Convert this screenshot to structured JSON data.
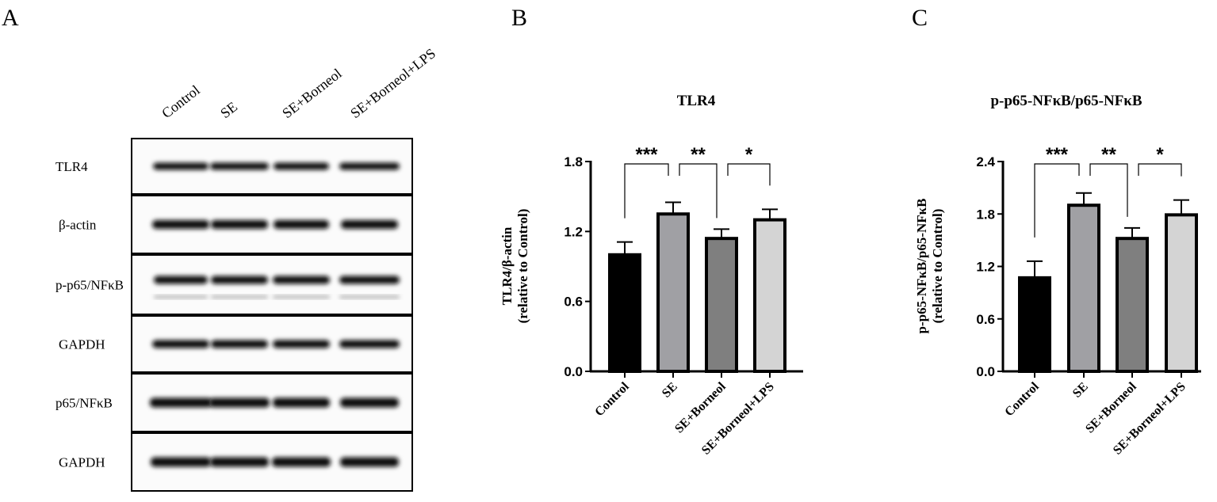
{
  "panels": {
    "a": "A",
    "b": "B",
    "c": "C"
  },
  "blot": {
    "lanes": [
      "Control",
      "SE",
      "SE+Borneol",
      "SE+Borneol+LPS"
    ],
    "rows": [
      "TLR4",
      "β-actin",
      "p-p65/NFκB",
      "GAPDH",
      "p65/NFκB",
      "GAPDH"
    ]
  },
  "chart_data": [
    {
      "type": "bar",
      "title": "TLR4",
      "ylabel": [
        "TLR4/β-actin",
        "(relative to Control)"
      ],
      "categories": [
        "Control",
        "SE",
        "SE+Borneol",
        "SE+Borneol+LPS"
      ],
      "values": [
        1.0,
        1.35,
        1.14,
        1.3
      ],
      "errors": [
        0.11,
        0.1,
        0.08,
        0.09
      ],
      "ylim": [
        0,
        1.8
      ],
      "yticks": [
        "0.0",
        "0.6",
        "1.2",
        "1.8"
      ],
      "colors": [
        "#000000",
        "#a0a0a4",
        "#7f7f7f",
        "#d4d4d4"
      ],
      "significance": [
        {
          "from": 0,
          "to": 1,
          "label": "***"
        },
        {
          "from": 1,
          "to": 2,
          "label": "**"
        },
        {
          "from": 2,
          "to": 3,
          "label": "*"
        }
      ]
    },
    {
      "type": "bar",
      "title": "p-p65-NFκB/p65-NFκB",
      "ylabel": [
        "p-p65-NFκB/p65-NFκB",
        "(relative to Control)"
      ],
      "categories": [
        "Control",
        "SE",
        "SE+Borneol",
        "SE+Borneol+LPS"
      ],
      "values": [
        1.07,
        1.9,
        1.52,
        1.79
      ],
      "errors": [
        0.19,
        0.14,
        0.12,
        0.17
      ],
      "ylim": [
        0,
        2.4
      ],
      "yticks": [
        "0.0",
        "0.6",
        "1.2",
        "1.8",
        "2.4"
      ],
      "colors": [
        "#000000",
        "#a0a0a4",
        "#7f7f7f",
        "#d4d4d4"
      ],
      "significance": [
        {
          "from": 0,
          "to": 1,
          "label": "***"
        },
        {
          "from": 1,
          "to": 2,
          "label": "**"
        },
        {
          "from": 2,
          "to": 3,
          "label": "*"
        }
      ]
    }
  ]
}
